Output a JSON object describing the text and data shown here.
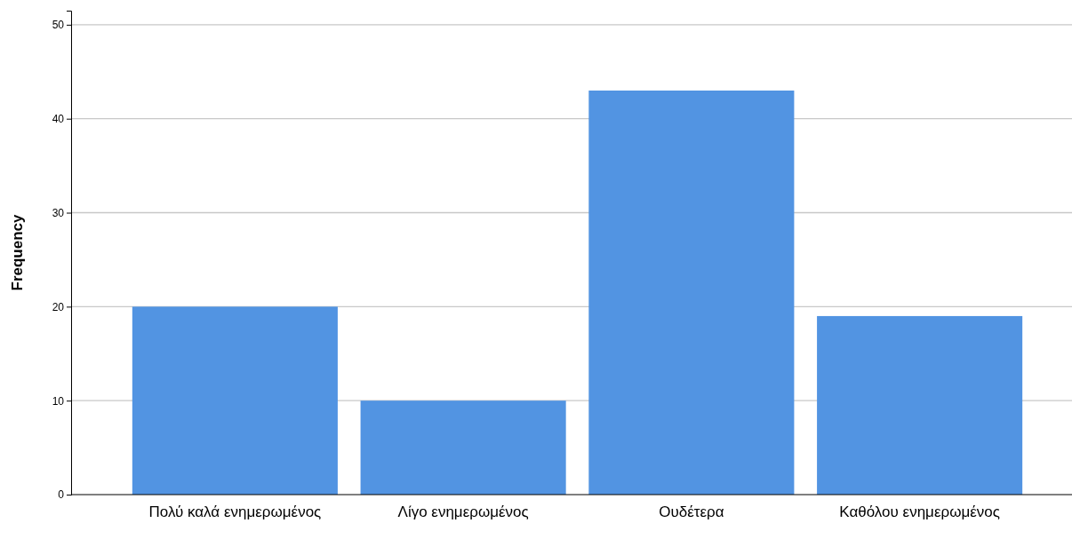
{
  "chart_data": {
    "type": "bar",
    "ylabel": "Frequency",
    "categories": [
      "Πολύ καλά ενημερωμένος",
      "Λίγο ενημερωμένος",
      "Ουδέτερα",
      "Καθόλου ενημερωμένος"
    ],
    "values": [
      20,
      10,
      43,
      19
    ],
    "color": "#5294e2",
    "ylim": [
      0,
      51.5
    ],
    "yticks": [
      0,
      10,
      20,
      30,
      40,
      50
    ],
    "grid": "y"
  }
}
